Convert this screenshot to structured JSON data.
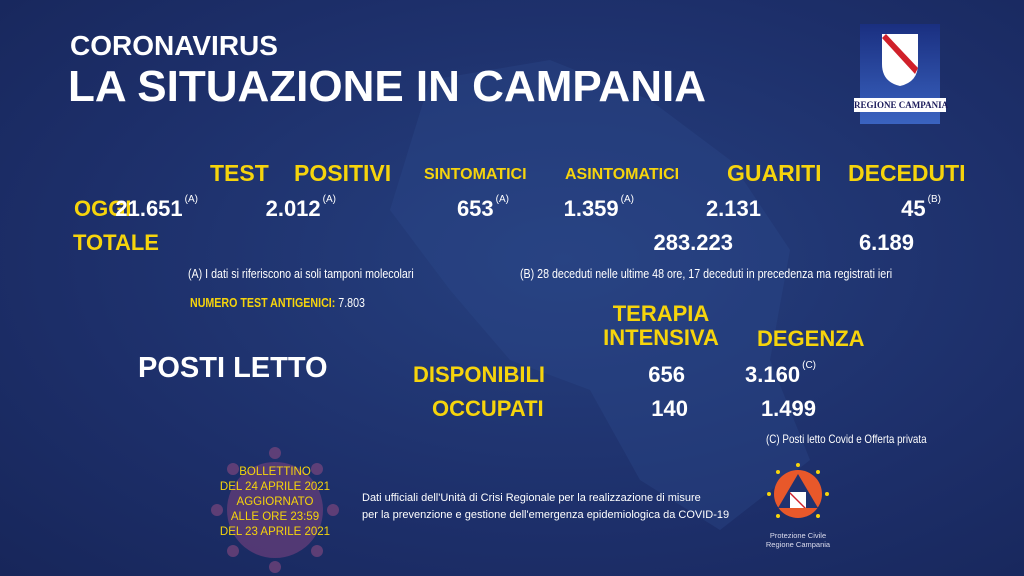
{
  "header": {
    "kicker": "CORONAVIRUS",
    "title": "LA SITUAZIONE IN CAMPANIA"
  },
  "logo": {
    "text": "REGIONE CAMPANIA"
  },
  "columns": [
    "TEST",
    "POSITIVI",
    "SINTOMATICI",
    "ASINTOMATICI",
    "GUARITI",
    "DECEDUTI"
  ],
  "rows": {
    "oggi": {
      "label": "OGGI",
      "test": "21.651",
      "test_note": "(A)",
      "positivi": "2.012",
      "positivi_note": "(A)",
      "sintomatici": "653",
      "sintomatici_note": "(A)",
      "asintomatici": "1.359",
      "asintomatici_note": "(A)",
      "guariti": "2.131",
      "deceduti": "45",
      "deceduti_note": "(B)"
    },
    "totale": {
      "label": "TOTALE",
      "guariti": "283.223",
      "deceduti": "6.189"
    }
  },
  "notes": {
    "a": "(A) I dati si riferiscono ai soli tamponi molecolari",
    "b": "(B) 28 deceduti nelle ultime 48 ore, 17 deceduti in precedenza ma registrati ieri",
    "antigen_label": "NUMERO TEST ANTIGENICI:",
    "antigen_value": "7.803",
    "c": "(C) Posti letto Covid e Offerta privata"
  },
  "beds": {
    "title": "POSTI LETTO",
    "col1_line1": "TERAPIA",
    "col1_line2": "INTENSIVA",
    "col2": "DEGENZA",
    "disponibili": {
      "label": "DISPONIBILI",
      "ti": "656",
      "degenza": "3.160",
      "note": "(C)"
    },
    "occupati": {
      "label": "OCCUPATI",
      "ti": "140",
      "degenza": "1.499"
    }
  },
  "bulletin": [
    "BOLLETTINO",
    "DEL 24 APRILE 2021",
    "AGGIORNATO",
    "ALLE ORE 23:59",
    "DEL 23 APRILE 2021"
  ],
  "footer": [
    "Dati ufficiali dell'Unità di Crisi Regionale per la realizzazione di misure",
    "per la prevenzione e gestione dell'emergenza epidemiologica da COVID-19"
  ],
  "protezione": {
    "line1": "Protezione Civile",
    "line2": "Regione Campania"
  },
  "colors": {
    "background": "#1f326f",
    "accent": "#f6d40c"
  }
}
